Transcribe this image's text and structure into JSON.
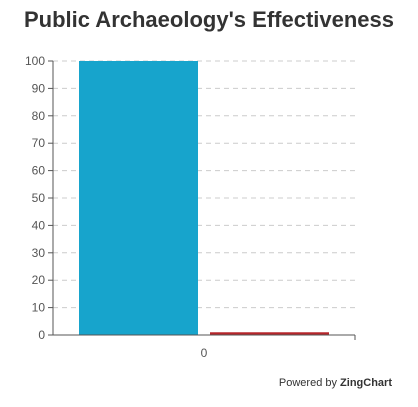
{
  "chart_data": {
    "type": "bar",
    "title": "Public Archaeology's Effectiveness",
    "categories": [
      "0"
    ],
    "series": [
      {
        "values": [
          100
        ],
        "color": "#17A4CC"
      },
      {
        "values": [
          1
        ],
        "color": "#B5262B"
      }
    ],
    "ylim": [
      0,
      100
    ],
    "yticks": [
      0,
      10,
      20,
      30,
      40,
      50,
      60,
      70,
      80,
      90,
      100
    ],
    "grid": true,
    "grid_style": "dashed",
    "xlabel": "",
    "ylabel": ""
  },
  "credit": {
    "prefix": "Powered by",
    "brand": "ZingChart"
  }
}
